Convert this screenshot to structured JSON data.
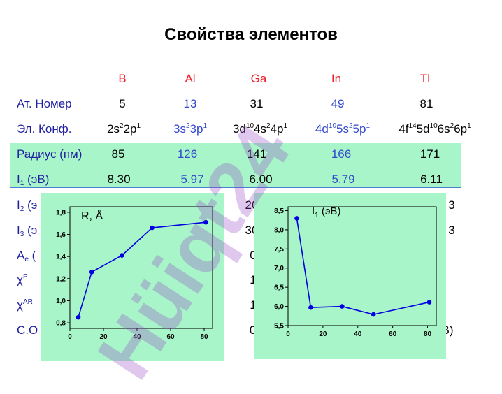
{
  "title": "Свойства элементов",
  "elements": [
    "B",
    "Al",
    "Ga",
    "In",
    "Tl"
  ],
  "rows": {
    "atomic_number": {
      "label": "Ат. Номер",
      "values": [
        "5",
        "13",
        "31",
        "49",
        "81"
      ]
    },
    "config": {
      "label": "Эл. Конф.",
      "values": [
        {
          "a": "2s",
          "b": "2",
          "c": "2p",
          "d": "1"
        },
        {
          "a": "3s",
          "b": "2",
          "c": "3p",
          "d": "1"
        },
        {
          "a": "3d",
          "b": "10",
          "c": "4s",
          "d": "2",
          "e": "4p",
          "f": "1"
        },
        {
          "a": "4d",
          "b": "10",
          "c": "5s",
          "d": "2",
          "e": "5p",
          "f": "1"
        },
        {
          "a": "4f",
          "b": "14",
          "c": "5d",
          "d": "10",
          "e": "6s",
          "f": "2",
          "g": "6p",
          "h": "1"
        }
      ]
    },
    "radius": {
      "label": "Радиус (пм)",
      "values": [
        "85",
        "126",
        "141",
        "166",
        "171"
      ]
    },
    "i1": {
      "label_main": "I",
      "label_sub": "1",
      "label_rest": " (эВ)",
      "values": [
        "8.30",
        "5.97",
        "6.00",
        "5.79",
        "6.11"
      ]
    },
    "i2": {
      "label": "I",
      "sub": "2",
      "rest": " (э",
      "ga_partial": "20",
      "tl_partial": "3"
    },
    "i3": {
      "label": "I",
      "sub": "3",
      "rest": " (э",
      "ga_partial": "30",
      "tl_partial": "3"
    },
    "ae": {
      "label": "A",
      "sub": "e",
      "rest": " (",
      "ga_partial": "0"
    },
    "chi_p": {
      "label": "χ",
      "sup": "P",
      "ga_partial": "1"
    },
    "chi_ar": {
      "label": "χ",
      "sup": "AR",
      "ga_partial": "1"
    },
    "co": {
      "label": "C.O",
      "ga_partial": "0,",
      "tl_partial": "B)"
    }
  },
  "chart_data": [
    {
      "type": "line",
      "title": "R, Å",
      "x": [
        5,
        13,
        31,
        49,
        81
      ],
      "y": [
        0.85,
        1.26,
        1.41,
        1.66,
        1.71
      ],
      "xlim": [
        0,
        85
      ],
      "ylim": [
        0.75,
        1.85
      ],
      "xticks": [
        "0",
        "20",
        "40",
        "60",
        "80"
      ],
      "yticks": [
        "0,8",
        "1,0",
        "1,2",
        "1,4",
        "1,6",
        "1,8"
      ],
      "color": "#0000e0"
    },
    {
      "type": "line",
      "title_main": "I",
      "title_sub": "1",
      "title_rest": " (эВ)",
      "x": [
        5,
        13,
        31,
        49,
        81
      ],
      "y": [
        8.3,
        5.97,
        6.0,
        5.79,
        6.11
      ],
      "xlim": [
        0,
        85
      ],
      "ylim": [
        5.5,
        8.6
      ],
      "xticks": [
        "0",
        "20",
        "40",
        "60",
        "80"
      ],
      "yticks": [
        "5,5",
        "6,0",
        "6,5",
        "7,0",
        "7,5",
        "8,0",
        "8,5"
      ],
      "color": "#0000e0"
    }
  ],
  "watermark": "Hüiqt24",
  "colors": {
    "red": "#e8242d",
    "blue": "#3349cc",
    "label": "#1f1fa0",
    "panel": "#a8f5c9"
  }
}
